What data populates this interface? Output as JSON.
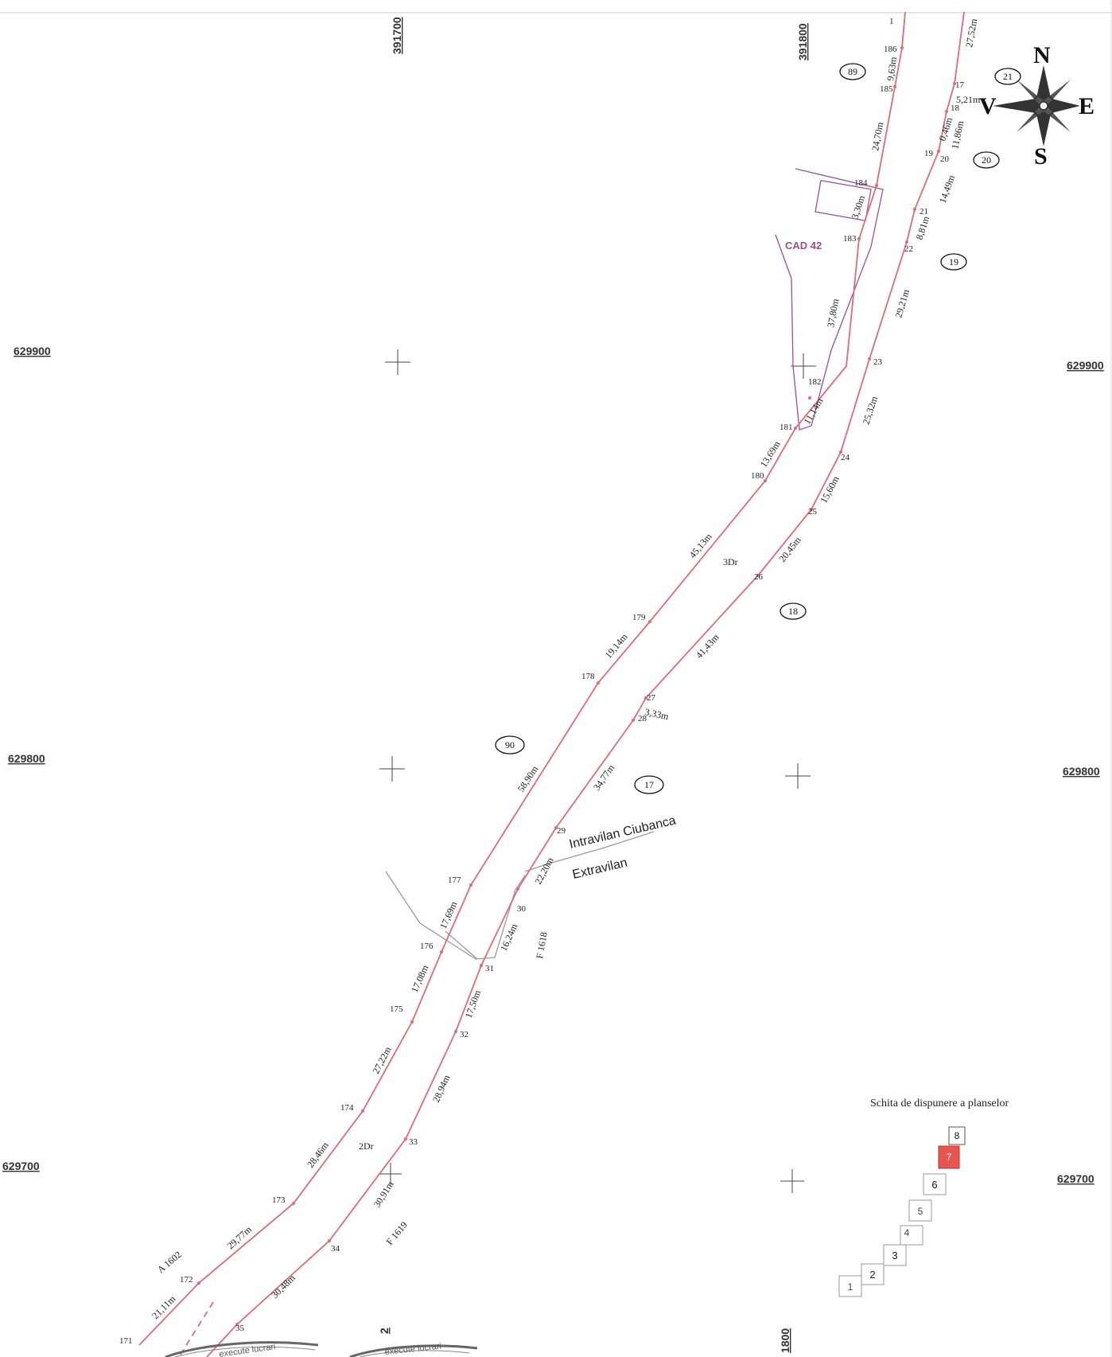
{
  "coords": {
    "x_top_1": "391700",
    "x_top_2": "391800",
    "x_bottom": "1800",
    "x_bottom_2": "2",
    "y_900_left": "629900",
    "y_900_right": "629900",
    "y_800_left": "629800",
    "y_800_right": "629800",
    "y_700_left": "629700",
    "y_700_right": "629700"
  },
  "compass": {
    "n": "N",
    "e": "E",
    "s": "S",
    "v": "V"
  },
  "parcels": {
    "p89": "89",
    "p21": "21",
    "p20": "20",
    "p19": "19",
    "p18": "18",
    "p90": "90",
    "p17": "17"
  },
  "road_labels": {
    "dr3": "3Dr",
    "dr2": "2Dr"
  },
  "other_labels": {
    "cad": "CAD 42",
    "intravilan": "Intravilan Ciubanca",
    "extravilan": "Extravilan",
    "f1618": "F 1618",
    "f1619": "F 1619",
    "a1602": "A 1602"
  },
  "points_west": {
    "p186": "186",
    "p185": "185",
    "p184": "184",
    "p183": "183",
    "p182": "182",
    "p181": "181",
    "p180": "180",
    "p179": "179",
    "p178": "178",
    "p177": "177",
    "p176": "176",
    "p175": "175",
    "p174": "174",
    "p173": "173",
    "p172": "172",
    "p171": "171",
    "p1": "1"
  },
  "points_east": {
    "p17": "17",
    "p18": "18",
    "p19": "19",
    "p20": "20",
    "p21": "21",
    "p22": "22",
    "p23": "23",
    "p24": "24",
    "p25": "25",
    "p26": "26",
    "p27": "27",
    "p28": "28",
    "p29": "29",
    "p30": "30",
    "p31": "31",
    "p32": "32",
    "p33": "33",
    "p34": "34",
    "p35": "35"
  },
  "segments_west": {
    "s1": "9,63m",
    "s2": "24,70m",
    "s3": "3,30m",
    "s4": "37,80m",
    "s5": "11,14m",
    "s6": "13,69m",
    "s7": "45,13m",
    "s8": "19,14m",
    "s9": "58,90m",
    "s10": "17,69m",
    "s11": "17,08m",
    "s12": "27,22m",
    "s13": "28,46m",
    "s14": "29,77m",
    "s15": "21,11m"
  },
  "segments_east": {
    "s1": "27,52m",
    "s2": "5,21m",
    "s3": "0,46m",
    "s4": "11,86m",
    "s5": "14,49m",
    "s6": "8,81m",
    "s7": "29,21m",
    "s8": "25,32m",
    "s9": "15,60m",
    "s10": "20,45m",
    "s11": "41,43m",
    "s12": "3,33m",
    "s13": "34,77m",
    "s14": "22,20m",
    "s15": "16,24m",
    "s16": "17,50m",
    "s17": "28,94m",
    "s18": "30,91m",
    "s19": "30,48m"
  },
  "sheet_index": {
    "title": "Schita de dispunere a planselor",
    "cells": [
      "1",
      "2",
      "3",
      "4",
      "5",
      "6",
      "7",
      "8"
    ],
    "active": "7",
    "active_color": "#e8554e"
  },
  "stamps": {
    "left": "execute lucrari",
    "right": "execute lucrari"
  },
  "colors": {
    "boundary": "#e36a74",
    "cadastre": "#9b4f96",
    "gray_line": "#9a9a9a"
  }
}
